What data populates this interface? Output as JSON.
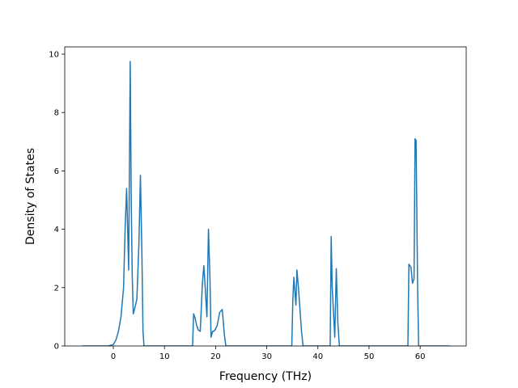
{
  "chart_data": {
    "type": "line",
    "title": "",
    "xlabel": "Frequency (THz)",
    "ylabel": "Density of States",
    "xlim": [
      -9.5,
      69.0
    ],
    "ylim": [
      0,
      10.25
    ],
    "xticks": [
      0,
      10,
      20,
      30,
      40,
      50,
      60
    ],
    "yticks": [
      0,
      2,
      4,
      6,
      8,
      10
    ],
    "grid": false,
    "legend": "none",
    "line_color": "#1f77b4",
    "series": [
      {
        "x": [
          -6.0,
          -1.0,
          0.0,
          0.5,
          1.0,
          1.5,
          2.0,
          2.3,
          2.6,
          2.8,
          3.0,
          3.1,
          3.3,
          3.5,
          3.7,
          3.9,
          4.2,
          4.6,
          5.0,
          5.3,
          5.6,
          5.8,
          6.0,
          6.2,
          15.5,
          15.7,
          16.0,
          16.3,
          16.6,
          17.0,
          17.4,
          17.7,
          17.9,
          18.3,
          18.6,
          18.9,
          19.1,
          19.4,
          19.6,
          19.9,
          20.3,
          20.8,
          21.3,
          21.7,
          22.0,
          22.3,
          22.6,
          34.9,
          35.1,
          35.3,
          35.7,
          35.9,
          36.2,
          36.4,
          36.8,
          37.1,
          37.4,
          37.8,
          42.4,
          42.6,
          42.8,
          43.3,
          43.6,
          43.9,
          44.2,
          44.5,
          57.4,
          57.6,
          57.8,
          58.2,
          58.5,
          58.8,
          59.0,
          59.2,
          59.5,
          59.7,
          65.8
        ],
        "y": [
          0.0,
          0.0,
          0.05,
          0.2,
          0.5,
          1.0,
          2.0,
          4.0,
          5.4,
          4.0,
          2.6,
          5.0,
          9.75,
          5.0,
          2.4,
          1.1,
          1.3,
          1.6,
          3.5,
          5.85,
          3.0,
          0.5,
          0.0,
          0.0,
          0.0,
          1.1,
          0.95,
          0.7,
          0.55,
          0.5,
          2.1,
          2.75,
          2.2,
          1.0,
          4.0,
          2.3,
          0.3,
          0.5,
          0.5,
          0.55,
          0.7,
          1.15,
          1.25,
          0.4,
          0.0,
          0.0,
          0.0,
          0.0,
          1.6,
          2.35,
          1.4,
          2.6,
          2.0,
          1.5,
          0.5,
          0.0,
          0.0,
          0.0,
          0.0,
          3.75,
          2.0,
          0.3,
          2.65,
          0.8,
          0.0,
          0.0,
          0.0,
          0.0,
          2.8,
          2.7,
          2.15,
          2.3,
          7.1,
          7.05,
          2.0,
          0.0,
          0.0
        ]
      }
    ]
  }
}
